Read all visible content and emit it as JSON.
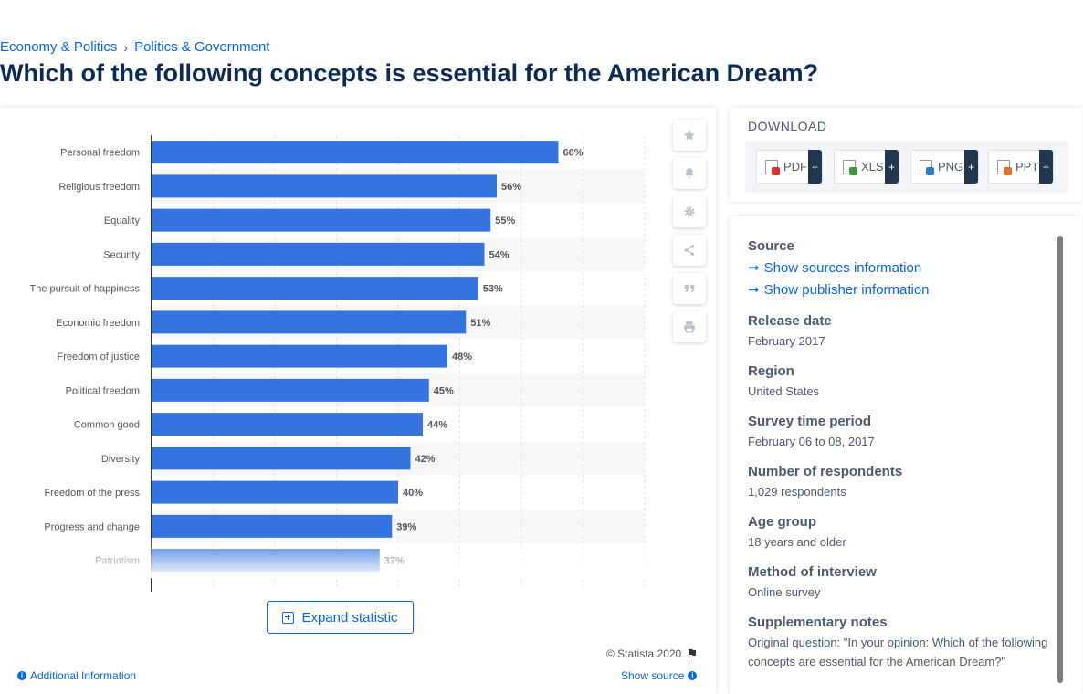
{
  "breadcrumb": {
    "items": [
      "Economy & Politics",
      "Politics & Government"
    ],
    "separator": "›"
  },
  "page_title": "Which of the following concepts is essential for the American Dream?",
  "chart": {
    "bar_color": "#3574de",
    "value_suffix": "%"
  },
  "chart_data": {
    "type": "bar",
    "orientation": "horizontal",
    "categories": [
      "Personal freedom",
      "Religious freedom",
      "Equality",
      "Security",
      "The pursuit of happiness",
      "Economic freedom",
      "Freedom of justice",
      "Political freedom",
      "Common good",
      "Diversity",
      "Freedom of the press",
      "Progress and change",
      "Patriotism"
    ],
    "values": [
      66,
      56,
      55,
      54,
      53,
      51,
      48,
      45,
      44,
      42,
      40,
      39,
      37
    ],
    "data_labels": [
      "66%",
      "56%",
      "55%",
      "54%",
      "53%",
      "51%",
      "48%",
      "45%",
      "44%",
      "42%",
      "40%",
      "39%",
      "37%"
    ],
    "title": "",
    "xlabel": "",
    "ylabel": "",
    "xlim": [
      0,
      80
    ],
    "grid": true,
    "legend": "none"
  },
  "tools": [
    "star-icon",
    "bell-icon",
    "gear-icon",
    "share-icon",
    "quote-icon",
    "print-icon"
  ],
  "expand_label": "Expand statistic",
  "copyright": "© Statista 2020",
  "additional_info": "Additional Information",
  "show_source": "Show source",
  "download": {
    "title": "DOWNLOAD",
    "buttons": [
      {
        "label": "PDF",
        "color": "#d9322a"
      },
      {
        "label": "XLS",
        "color": "#3a9a3a"
      },
      {
        "label": "PNG",
        "color": "#2a78c9"
      },
      {
        "label": "PPT",
        "color": "#e5722a"
      }
    ],
    "plus": "+"
  },
  "meta": {
    "source_label": "Source",
    "show_sources": "Show sources information",
    "show_publisher": "Show publisher information",
    "release_label": "Release date",
    "release_value": "February 2017",
    "region_label": "Region",
    "region_value": "United States",
    "survey_label": "Survey time period",
    "survey_value": "February 06 to 08, 2017",
    "respondents_label": "Number of respondents",
    "respondents_value": "1,029 respondents",
    "age_label": "Age group",
    "age_value": "18 years and older",
    "method_label": "Method of interview",
    "method_value": "Online survey",
    "notes_label": "Supplementary notes",
    "notes_value": "Original question: \"In your opinion: Which of the following concepts are essential for the American Dream?\""
  }
}
